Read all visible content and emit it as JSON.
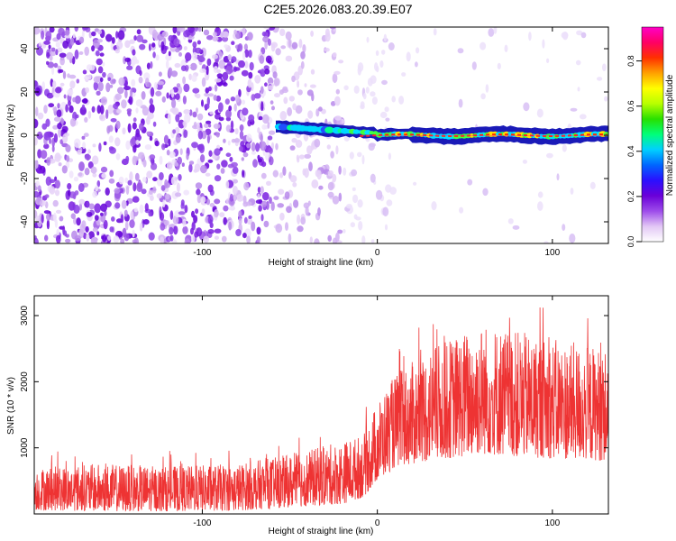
{
  "title": "C2E5.2026.083.20.39.E07",
  "chart_data": [
    {
      "type": "heatmap",
      "name": "spectrogram",
      "xlabel": "Height of straight line (km)",
      "ylabel": "Frequency (Hz)",
      "xlim": [
        -196,
        132
      ],
      "ylim": [
        -50,
        50
      ],
      "xticks": [
        -100,
        0,
        100
      ],
      "xtick_labels": [
        "-100",
        "0",
        "100"
      ],
      "yticks": [
        -40,
        -20,
        0,
        20,
        40
      ],
      "ytick_labels": [
        "-40",
        "-20",
        "0",
        "20",
        "40"
      ],
      "description_regions": [
        {
          "x_range": [
            -196,
            -60
          ],
          "content": "dense scattered noise speckle (purple/blue)"
        },
        {
          "x_range": [
            -60,
            -20
          ],
          "content": "sparser noise, signal trace begins near 0-5 Hz"
        },
        {
          "x_range": [
            -20,
            132
          ],
          "content": "strong narrow signal band centered at 0 Hz"
        }
      ],
      "colorbar": {
        "label": "Normalized spectral amplitude",
        "range": [
          0.0,
          0.95
        ],
        "ticks": [
          0.0,
          0.2,
          0.4,
          0.6,
          0.8
        ],
        "tick_labels": [
          "0.0",
          "0.2",
          "0.4",
          "0.6",
          "0.8"
        ],
        "colormap": [
          "#ffffff",
          "#e2c7f5",
          "#9d4bea",
          "#6a00d8",
          "#2a10ff",
          "#0066ff",
          "#00d0ff",
          "#00ff7a",
          "#28e000",
          "#b8ff00",
          "#ffff00",
          "#ffa000",
          "#ff3000",
          "#ff0066",
          "#ff00c8"
        ]
      }
    },
    {
      "type": "line",
      "name": "snr",
      "xlabel": "Height of straight line (km)",
      "ylabel": "SNR (10 * v/v)",
      "xlim": [
        -196,
        132
      ],
      "ylim": [
        0,
        3300
      ],
      "xticks": [
        -100,
        0,
        100
      ],
      "xtick_labels": [
        "-100",
        "0",
        "100"
      ],
      "yticks": [
        1000,
        2000,
        3000
      ],
      "ytick_labels": [
        "1000",
        "2000",
        "3000"
      ],
      "color": "#ee3333",
      "envelope": [
        {
          "x": -196,
          "low": 60,
          "high": 700
        },
        {
          "x": -160,
          "low": 40,
          "high": 760
        },
        {
          "x": -120,
          "low": 40,
          "high": 720
        },
        {
          "x": -80,
          "low": 50,
          "high": 760
        },
        {
          "x": -50,
          "low": 100,
          "high": 900
        },
        {
          "x": -20,
          "low": 150,
          "high": 1100
        },
        {
          "x": -8,
          "low": 250,
          "high": 1200
        },
        {
          "x": 0,
          "low": 500,
          "high": 1700
        },
        {
          "x": 10,
          "low": 700,
          "high": 2100
        },
        {
          "x": 30,
          "low": 800,
          "high": 2500
        },
        {
          "x": 60,
          "low": 900,
          "high": 2900
        },
        {
          "x": 90,
          "low": 850,
          "high": 2700
        },
        {
          "x": 132,
          "low": 800,
          "high": 2500
        }
      ]
    }
  ]
}
